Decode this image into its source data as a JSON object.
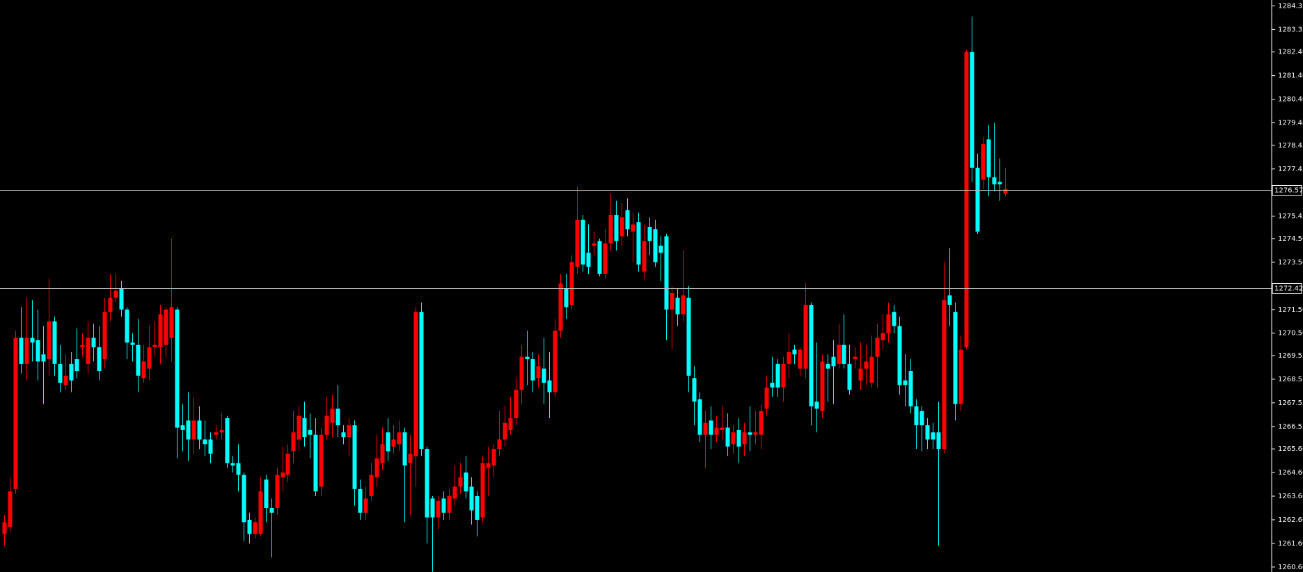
{
  "chart_data": {
    "type": "candlestick",
    "up_color": "#ff0000",
    "down_color": "#00ffff",
    "ylim": [
      1260.39,
      1284.6
    ],
    "yticks": [
      1284.35,
      1283.35,
      {
        "value": 1282.4,
        "label": "1282.40"
      },
      {
        "value": 1281.4,
        "label": "1281.40"
      },
      {
        "value": 1280.4,
        "label": "1280.40"
      },
      {
        "value": 1279.4,
        "label": "1279.40"
      },
      1278.45,
      1277.45,
      1275.45,
      {
        "value": 1274.5,
        "label": "1274.50"
      },
      {
        "value": 1273.5,
        "label": "1273.50"
      },
      {
        "value": 1271.5,
        "label": "1271.50"
      },
      {
        "value": 1270.5,
        "label": "1270.50"
      },
      1269.55,
      1268.55,
      1267.55,
      1266.55,
      {
        "value": 1265.6,
        "label": "1265.60"
      },
      {
        "value": 1264.6,
        "label": "1264.60"
      },
      {
        "value": 1263.6,
        "label": "1263.60"
      },
      {
        "value": 1262.6,
        "label": "1262.60"
      },
      {
        "value": 1261.6,
        "label": "1261.60"
      },
      {
        "value": 1260.6,
        "label": "1260.60"
      }
    ],
    "hlines": [
      1276.57,
      1272.42
    ],
    "candles": [
      [
        1262,
        1262.8,
        1261.5,
        1262.5
      ],
      [
        1262.3,
        1264.4,
        1262.1,
        1263.8
      ],
      [
        1263.9,
        1270.6,
        1263.7,
        1270.3
      ],
      [
        1270.3,
        1271.6,
        1268.8,
        1269.2
      ],
      [
        1269.2,
        1272,
        1268.5,
        1270.3
      ],
      [
        1270.3,
        1271.9,
        1269.3,
        1270.1
      ],
      [
        1270.2,
        1271.5,
        1268.5,
        1269.3
      ],
      [
        1269.6,
        1270.8,
        1267.5,
        1269.3
      ],
      [
        1269.4,
        1272.8,
        1268.7,
        1271
      ],
      [
        1271,
        1271.2,
        1268.7,
        1269.2
      ],
      [
        1269.2,
        1270,
        1268,
        1268.4
      ],
      [
        1268.3,
        1269.6,
        1268.1,
        1268.7
      ],
      [
        1269.2,
        1269.7,
        1268,
        1268.5
      ],
      [
        1269.4,
        1270.7,
        1268.6,
        1268.9
      ],
      [
        1269.9,
        1270.5,
        1269.5,
        1270
      ],
      [
        1269.2,
        1271,
        1268.8,
        1270.3
      ],
      [
        1270.3,
        1270.9,
        1269.3,
        1269.9
      ],
      [
        1269.9,
        1270.8,
        1268.5,
        1268.9
      ],
      [
        1269.4,
        1272,
        1269,
        1271.4
      ],
      [
        1271.4,
        1273,
        1271,
        1272
      ],
      [
        1272,
        1273,
        1271.8,
        1272.3
      ],
      [
        1272.4,
        1272.7,
        1271.2,
        1271.5
      ],
      [
        1271.5,
        1271.6,
        1269.4,
        1270.1
      ],
      [
        1270.1,
        1270.5,
        1269.3,
        1270
      ],
      [
        1270,
        1271.1,
        1268,
        1268.7
      ],
      [
        1268.6,
        1270,
        1268.4,
        1269.3
      ],
      [
        1269,
        1270.8,
        1268.5,
        1269.9
      ],
      [
        1269.9,
        1271,
        1269.5,
        1270
      ],
      [
        1269.9,
        1271.7,
        1269.2,
        1271.3
      ],
      [
        1270,
        1271.6,
        1269.5,
        1271.5
      ],
      [
        1270.3,
        1274.5,
        1269.3,
        1271.6
      ],
      [
        1271.5,
        1271.6,
        1265.2,
        1266.5
      ],
      [
        1266.6,
        1267.5,
        1265.5,
        1266.4
      ],
      [
        1266.8,
        1268,
        1265.1,
        1266
      ],
      [
        1266,
        1267.8,
        1265.4,
        1266.8
      ],
      [
        1266.8,
        1267.4,
        1265.6,
        1266
      ],
      [
        1266,
        1266.8,
        1265.3,
        1265.8
      ],
      [
        1266,
        1266.3,
        1265,
        1265.4
      ],
      [
        1266.2,
        1266.6,
        1266,
        1266.3
      ],
      [
        1266.3,
        1267.1,
        1266,
        1266.4
      ],
      [
        1266.9,
        1267,
        1264.8,
        1265
      ],
      [
        1265,
        1265.3,
        1264.6,
        1264.9
      ],
      [
        1265,
        1265.8,
        1263.8,
        1264.5
      ],
      [
        1264.5,
        1264.6,
        1261.7,
        1262.5
      ],
      [
        1262.6,
        1262.9,
        1261.6,
        1262
      ],
      [
        1262,
        1262.7,
        1261.8,
        1262.5
      ],
      [
        1262,
        1264.4,
        1261.9,
        1263.8
      ],
      [
        1264.3,
        1264.5,
        1262.5,
        1263.1
      ],
      [
        1263.1,
        1263.5,
        1261,
        1262.9
      ],
      [
        1263.1,
        1264.8,
        1262.8,
        1264.5
      ],
      [
        1264.4,
        1265.7,
        1263.8,
        1264.6
      ],
      [
        1264.5,
        1265.8,
        1264.2,
        1265.4
      ],
      [
        1265.5,
        1267.2,
        1265,
        1266.3
      ],
      [
        1266,
        1267.4,
        1265.5,
        1267
      ],
      [
        1266.9,
        1267.6,
        1265.7,
        1266.1
      ],
      [
        1266.4,
        1267.1,
        1265.2,
        1266.2
      ],
      [
        1266.2,
        1266.9,
        1263.6,
        1263.8
      ],
      [
        1264,
        1266.5,
        1263.6,
        1266.2
      ],
      [
        1266.2,
        1267.8,
        1266,
        1267
      ],
      [
        1266.7,
        1267.9,
        1266.1,
        1267.3
      ],
      [
        1267.3,
        1268.3,
        1266.1,
        1266.6
      ],
      [
        1266.3,
        1266.6,
        1265.8,
        1266.1
      ],
      [
        1266.1,
        1266.9,
        1265.3,
        1266.6
      ],
      [
        1266.6,
        1266.8,
        1263.2,
        1263.9
      ],
      [
        1263.9,
        1264.3,
        1262.6,
        1262.9
      ],
      [
        1262.9,
        1264,
        1262.6,
        1263.5
      ],
      [
        1263.6,
        1265,
        1263.4,
        1264.5
      ],
      [
        1264.4,
        1266.2,
        1264,
        1265.2
      ],
      [
        1265,
        1266.5,
        1264.7,
        1265.8
      ],
      [
        1266.3,
        1266.9,
        1265.1,
        1265.5
      ],
      [
        1265.7,
        1266.6,
        1265.4,
        1266
      ],
      [
        1265.8,
        1266.8,
        1265.5,
        1266.3
      ],
      [
        1266.3,
        1266.5,
        1262.5,
        1264.9
      ],
      [
        1265,
        1266.2,
        1262.8,
        1265.4
      ],
      [
        1265.3,
        1271.6,
        1264,
        1271.4
      ],
      [
        1271.4,
        1271.8,
        1265.3,
        1265.6
      ],
      [
        1265.6,
        1265.7,
        1261.6,
        1262.7
      ],
      [
        1263.5,
        1263.6,
        1260.4,
        1262.7
      ],
      [
        1262.7,
        1263.6,
        1262.2,
        1263.4
      ],
      [
        1263.5,
        1263.8,
        1262.6,
        1262.9
      ],
      [
        1262.9,
        1263.9,
        1262.6,
        1263.6
      ],
      [
        1263.5,
        1264.9,
        1263.2,
        1264
      ],
      [
        1264,
        1265,
        1263.7,
        1264.4
      ],
      [
        1264.6,
        1265.3,
        1263.5,
        1263.8
      ],
      [
        1264,
        1264.4,
        1262.4,
        1263
      ],
      [
        1263.6,
        1263.8,
        1261.9,
        1262.6
      ],
      [
        1262.7,
        1265.3,
        1262.5,
        1265
      ],
      [
        1264.8,
        1265.7,
        1263.6,
        1265
      ],
      [
        1264.9,
        1265.8,
        1264.4,
        1265.6
      ],
      [
        1265.6,
        1267.2,
        1265.3,
        1266
      ],
      [
        1266,
        1267.4,
        1265.7,
        1266.7
      ],
      [
        1266.4,
        1267.8,
        1266.2,
        1266.9
      ],
      [
        1266.9,
        1268.6,
        1266.6,
        1268.1
      ],
      [
        1268.1,
        1270,
        1267.5,
        1269.5
      ],
      [
        1269.5,
        1270.6,
        1268.3,
        1269.4
      ],
      [
        1269.4,
        1269.7,
        1268,
        1268.5
      ],
      [
        1268.6,
        1269.6,
        1268.2,
        1269.1
      ],
      [
        1269,
        1270.3,
        1267.5,
        1268.4
      ],
      [
        1268.5,
        1269.7,
        1266.9,
        1268
      ],
      [
        1268,
        1271.1,
        1267.8,
        1270.6
      ],
      [
        1270.6,
        1273,
        1270.3,
        1272.6
      ],
      [
        1272.4,
        1273,
        1271.1,
        1271.6
      ],
      [
        1271.7,
        1273.8,
        1271.5,
        1273.5
      ],
      [
        1273.3,
        1276.7,
        1273,
        1275.3
      ],
      [
        1275.3,
        1275.5,
        1273.1,
        1273.4
      ],
      [
        1273.9,
        1275.1,
        1273,
        1273.3
      ],
      [
        1274.2,
        1274.8,
        1273.8,
        1274.3
      ],
      [
        1274.4,
        1274.5,
        1272.9,
        1273
      ],
      [
        1273,
        1274.9,
        1272.8,
        1274.3
      ],
      [
        1274.3,
        1276.4,
        1274,
        1275.5
      ],
      [
        1275.5,
        1276.1,
        1274,
        1274.4
      ],
      [
        1274.6,
        1276,
        1274.2,
        1275.4
      ],
      [
        1275.7,
        1276.2,
        1274.6,
        1274.9
      ],
      [
        1274.8,
        1275.6,
        1273.5,
        1275.1
      ],
      [
        1275.2,
        1275.6,
        1273.1,
        1273.4
      ],
      [
        1273.1,
        1275.1,
        1272.8,
        1274.4
      ],
      [
        1275,
        1275.4,
        1273.8,
        1274.4
      ],
      [
        1274.9,
        1275.3,
        1273.3,
        1273.5
      ],
      [
        1274.2,
        1274.6,
        1272.7,
        1273.9
      ],
      [
        1274.6,
        1274.7,
        1270.2,
        1271.5
      ],
      [
        1271.5,
        1272.5,
        1269.8,
        1272.2
      ],
      [
        1272,
        1272.4,
        1270.8,
        1271.3
      ],
      [
        1271.3,
        1274,
        1271,
        1272.1
      ],
      [
        1272,
        1272.5,
        1268,
        1268.7
      ],
      [
        1268.6,
        1269.1,
        1266.6,
        1267.6
      ],
      [
        1267.7,
        1268,
        1265.9,
        1266.2
      ],
      [
        1266.2,
        1267.2,
        1264.8,
        1266.7
      ],
      [
        1266.8,
        1267.4,
        1265.6,
        1266.2
      ],
      [
        1266.2,
        1267,
        1265.9,
        1266.5
      ],
      [
        1266.4,
        1267.4,
        1266,
        1266.5
      ],
      [
        1266.5,
        1267.1,
        1265.3,
        1265.7
      ],
      [
        1265.8,
        1266.6,
        1265.4,
        1266.3
      ],
      [
        1266.4,
        1266.9,
        1265,
        1265.7
      ],
      [
        1265.8,
        1266.7,
        1265.3,
        1266.3
      ],
      [
        1266.3,
        1267.4,
        1265.5,
        1266.2
      ],
      [
        1266.2,
        1267.2,
        1265.8,
        1266.3
      ],
      [
        1266.2,
        1267.5,
        1265.6,
        1267.2
      ],
      [
        1267.3,
        1268.7,
        1267,
        1268.2
      ],
      [
        1268.4,
        1269.5,
        1267.8,
        1268.2
      ],
      [
        1269.2,
        1269.4,
        1267.8,
        1268.2
      ],
      [
        1268.2,
        1269.5,
        1267.6,
        1269.2
      ],
      [
        1269.2,
        1270.5,
        1268.6,
        1269.7
      ],
      [
        1269.8,
        1270,
        1269.2,
        1269.6
      ],
      [
        1269,
        1269.9,
        1268.7,
        1269.8
      ],
      [
        1269,
        1272.6,
        1268.6,
        1271.7
      ],
      [
        1271.7,
        1271.8,
        1266.6,
        1267.4
      ],
      [
        1267.6,
        1270.1,
        1266.3,
        1267.3
      ],
      [
        1267.2,
        1269.6,
        1266.9,
        1269.3
      ],
      [
        1269.2,
        1269.6,
        1267.6,
        1269
      ],
      [
        1269.5,
        1270.2,
        1267.5,
        1269.1
      ],
      [
        1269.2,
        1270.9,
        1269,
        1270
      ],
      [
        1270,
        1271.3,
        1269,
        1269.2
      ],
      [
        1269.2,
        1270,
        1267.9,
        1268.1
      ],
      [
        1269.4,
        1269.9,
        1269,
        1269.5
      ],
      [
        1268.5,
        1270.1,
        1268.1,
        1269
      ],
      [
        1269,
        1270,
        1268.3,
        1269.3
      ],
      [
        1268.4,
        1270.4,
        1268.2,
        1269.5
      ],
      [
        1269.5,
        1270.9,
        1268.2,
        1270.3
      ],
      [
        1270.2,
        1271.3,
        1269.8,
        1270.5
      ],
      [
        1270.5,
        1271.8,
        1270.1,
        1271.3
      ],
      [
        1271.4,
        1271.7,
        1270.5,
        1270.8
      ],
      [
        1270.8,
        1271.2,
        1267.9,
        1268.3
      ],
      [
        1268.5,
        1269.6,
        1267.4,
        1268.3
      ],
      [
        1268.9,
        1269.4,
        1267.1,
        1267.4
      ],
      [
        1267.4,
        1267.7,
        1265.6,
        1266.6
      ],
      [
        1267.2,
        1267.4,
        1265.5,
        1266.6
      ],
      [
        1266.6,
        1266.9,
        1265.6,
        1266
      ],
      [
        1266.3,
        1266.7,
        1265.6,
        1266
      ],
      [
        1266.3,
        1267.6,
        1261.5,
        1265.6
      ],
      [
        1265.6,
        1273.5,
        1265.4,
        1271.9
      ],
      [
        1272.1,
        1274.1,
        1270.8,
        1271.7
      ],
      [
        1271.4,
        1271.8,
        1266.8,
        1267.5
      ],
      [
        1267.5,
        1270.4,
        1267.2,
        1269.8
      ],
      [
        1269.9,
        1282.5,
        1269.8,
        1282.4
      ],
      [
        1282.4,
        1283.9,
        1276.9,
        1277.5
      ],
      [
        1277.5,
        1278.1,
        1274.7,
        1274.8
      ],
      [
        1277,
        1278.8,
        1276.6,
        1278.5
      ],
      [
        1278.7,
        1279.3,
        1276.3,
        1277.1
      ],
      [
        1277.1,
        1279.4,
        1276.5,
        1276.8
      ],
      [
        1276.9,
        1277.9,
        1276.1,
        1276.8
      ],
      [
        1276.4,
        1277.5,
        1276.3,
        1276.6
      ]
    ]
  }
}
